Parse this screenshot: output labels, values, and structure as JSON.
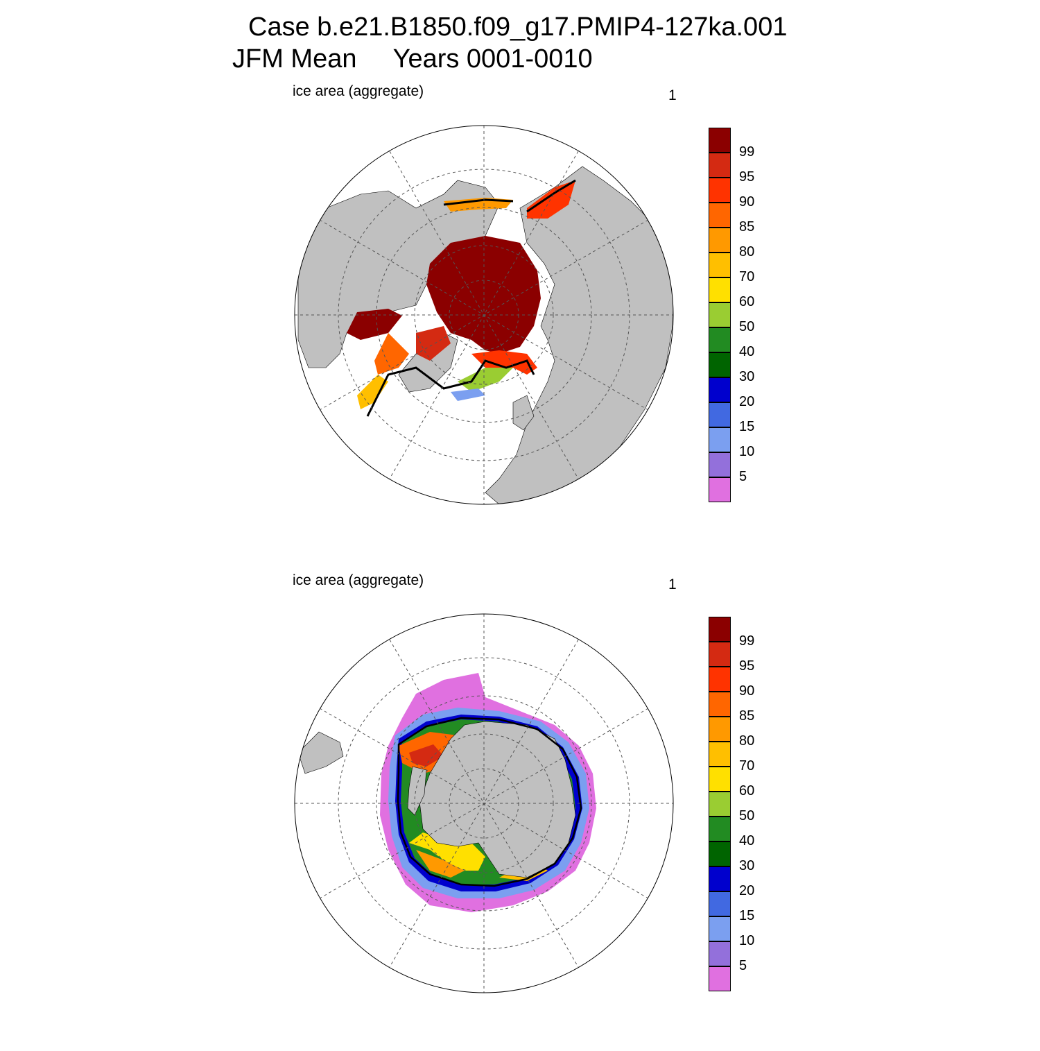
{
  "title": {
    "line1": "Case b.e21.B1850.f09_g17.PMIP4-127ka.001",
    "line2": "JFM Mean     Years 0001-0010"
  },
  "panels": [
    {
      "name": "north",
      "label": "ice area  (aggregate)",
      "units": "1",
      "hemisphere": "north"
    },
    {
      "name": "south",
      "label": "ice area  (aggregate)",
      "units": "1",
      "hemisphere": "south"
    }
  ],
  "colorbar": {
    "levels": [
      "99",
      "95",
      "90",
      "85",
      "80",
      "70",
      "60",
      "50",
      "40",
      "30",
      "20",
      "15",
      "10",
      "5"
    ],
    "colors": [
      "#8b0000",
      "#d42a12",
      "#ff3300",
      "#ff6600",
      "#ff9900",
      "#ffbf00",
      "#ffe000",
      "#9acd32",
      "#228b22",
      "#006400",
      "#0000cd",
      "#4169e1",
      "#7b9ff0",
      "#9370db",
      "#e070e0"
    ]
  },
  "map_colors": {
    "land": "#c0c0c0",
    "ocean": "#ffffff",
    "grid": "#555555"
  }
}
